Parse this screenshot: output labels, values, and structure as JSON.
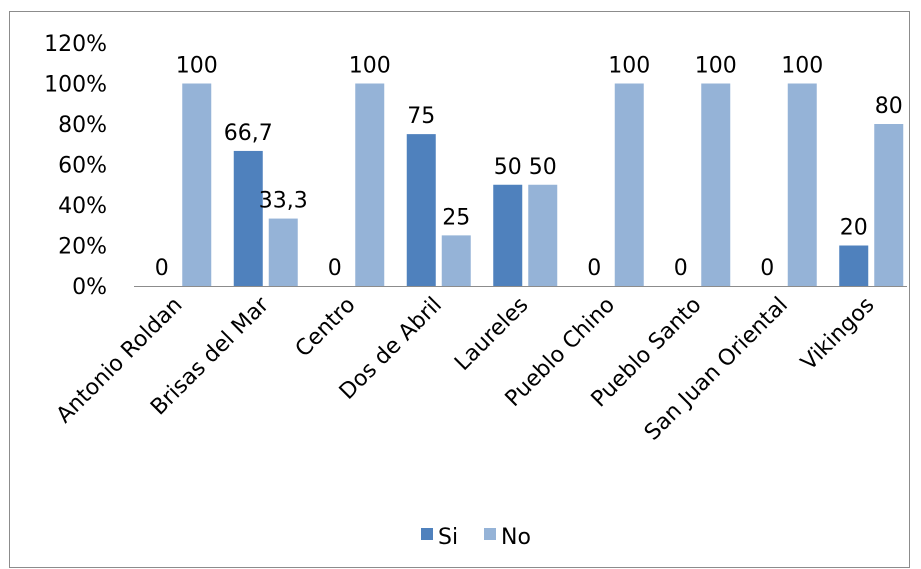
{
  "chart_data": {
    "type": "bar",
    "title": "",
    "xlabel": "",
    "ylabel": "",
    "categories": [
      "Antonio Roldan",
      "Brisas del Mar",
      "Centro",
      "Dos de Abril",
      "Laureles",
      "Pueblo Chino",
      "Pueblo Santo",
      "San Juan Oriental",
      "Vikingos"
    ],
    "series": [
      {
        "name": "Si",
        "color": "#4f81bd",
        "values": [
          0,
          66.7,
          0,
          75,
          50,
          0,
          0,
          0,
          20
        ],
        "labels": [
          "0",
          "66,7",
          "0",
          "75",
          "50",
          "0",
          "0",
          "0",
          "20"
        ]
      },
      {
        "name": "No",
        "color": "#95b3d7",
        "values": [
          100,
          33.3,
          100,
          25,
          50,
          100,
          100,
          100,
          80
        ],
        "labels": [
          "100",
          "33,3",
          "100",
          "25",
          "50",
          "100",
          "100",
          "100",
          "80"
        ]
      }
    ],
    "ylim": [
      0,
      120
    ],
    "yticks": [
      0,
      20,
      40,
      60,
      80,
      100,
      120
    ],
    "ytick_labels": [
      "0%",
      "20%",
      "40%",
      "60%",
      "80%",
      "100%",
      "120%"
    ],
    "grid": false,
    "legend": "bottom"
  }
}
